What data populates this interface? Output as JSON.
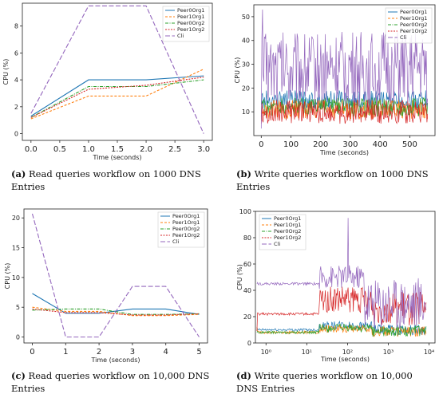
{
  "captions": [
    {
      "label": "(a)",
      "text": "Read queries workflow on 1000 DNS Entries"
    },
    {
      "label": "(b)",
      "text": "Write queries workflow on 1000 DNS Entries"
    },
    {
      "label": "(c)",
      "text": "Read queries workflow on 10,000 DNS Entries"
    },
    {
      "label": "(d)",
      "text": "Write queries workflow on 10,000 DNS Entries"
    }
  ],
  "colors": {
    "Peer0Org1": "#1f77b4",
    "Peer1Org1": "#ff7f0e",
    "Peer0Org2": "#2ca02c",
    "Peer1Org2": "#d62728",
    "Cli": "#9467bd"
  },
  "chart_data": [
    {
      "id": "a",
      "type": "line",
      "xlabel": "Time (seconds)",
      "ylabel": "CPU (%)",
      "xlim": [
        -0.15,
        3.15
      ],
      "ylim": [
        -0.5,
        9.7
      ],
      "xticks": [
        0.0,
        0.5,
        1.0,
        1.5,
        2.0,
        2.5,
        3.0
      ],
      "xtick_labels": [
        "0.0",
        "0.5",
        "1.0",
        "1.5",
        "2.0",
        "2.5",
        "3.0"
      ],
      "yticks": [
        0,
        2,
        4,
        6,
        8
      ],
      "ytick_labels": [
        "0",
        "2",
        "4",
        "6",
        "8"
      ],
      "legend": "upper-right",
      "series": [
        {
          "name": "Peer0Org1",
          "x": [
            0,
            1,
            2,
            3
          ],
          "y": [
            1.3,
            4.0,
            4.0,
            4.3
          ]
        },
        {
          "name": "Peer1Org1",
          "x": [
            0,
            1,
            2,
            3
          ],
          "y": [
            1.1,
            2.8,
            2.8,
            4.8
          ]
        },
        {
          "name": "Peer0Org2",
          "x": [
            0,
            1,
            2,
            3
          ],
          "y": [
            1.2,
            3.5,
            3.5,
            4.0
          ]
        },
        {
          "name": "Peer1Org2",
          "x": [
            0,
            1,
            2,
            3
          ],
          "y": [
            1.2,
            3.3,
            3.6,
            4.2
          ]
        },
        {
          "name": "Cli",
          "x": [
            0,
            1,
            2,
            3
          ],
          "y": [
            1.5,
            9.5,
            9.5,
            0.0
          ]
        }
      ]
    },
    {
      "id": "b",
      "type": "line",
      "xlabel": "Time (seconds)",
      "ylabel": "CPU (%)",
      "xlim": [
        -25,
        585
      ],
      "ylim": [
        0,
        55
      ],
      "xticks": [
        0,
        100,
        200,
        300,
        400,
        500
      ],
      "xtick_labels": [
        "0",
        "100",
        "200",
        "300",
        "400",
        "500"
      ],
      "yticks": [
        10,
        20,
        30,
        40,
        50
      ],
      "ytick_labels": [
        "10",
        "20",
        "30",
        "40",
        "50"
      ],
      "legend": "upper-right",
      "noisy": true,
      "x_end": 560,
      "series": [
        {
          "name": "Peer0Org1",
          "base": 15,
          "amp": 4,
          "start": 13
        },
        {
          "name": "Peer1Org1",
          "base": 11,
          "amp": 4,
          "start": 6
        },
        {
          "name": "Peer0Org2",
          "base": 12,
          "amp": 4,
          "start": 8
        },
        {
          "name": "Peer1Org2",
          "base": 10,
          "amp": 5,
          "start": 5
        },
        {
          "name": "Cli",
          "base": 28,
          "amp": 16,
          "start": 3,
          "peak": 53
        }
      ]
    },
    {
      "id": "c",
      "type": "line",
      "xlabel": "Time (seconds)",
      "ylabel": "CPU (%)",
      "xlim": [
        -0.25,
        5.25
      ],
      "ylim": [
        -1,
        21.5
      ],
      "xticks": [
        0,
        1,
        2,
        3,
        4,
        5
      ],
      "xtick_labels": [
        "0",
        "1",
        "2",
        "3",
        "4",
        "5"
      ],
      "yticks": [
        0,
        5,
        10,
        15,
        20
      ],
      "ytick_labels": [
        "0",
        "5",
        "10",
        "15",
        "20"
      ],
      "legend": "upper-right",
      "series": [
        {
          "name": "Peer0Org1",
          "x": [
            0,
            1,
            2,
            3,
            4,
            5
          ],
          "y": [
            7.3,
            4.0,
            4.0,
            4.7,
            4.7,
            3.8
          ]
        },
        {
          "name": "Peer1Org1",
          "x": [
            0,
            1,
            2,
            3,
            4,
            5
          ],
          "y": [
            5.0,
            4.3,
            4.3,
            3.6,
            3.6,
            3.8
          ]
        },
        {
          "name": "Peer0Org2",
          "x": [
            0,
            1,
            2,
            3,
            4,
            5
          ],
          "y": [
            4.5,
            4.7,
            4.7,
            3.8,
            3.8,
            3.9
          ]
        },
        {
          "name": "Peer1Org2",
          "x": [
            0,
            1,
            2,
            3,
            4,
            5
          ],
          "y": [
            4.7,
            4.1,
            4.1,
            3.7,
            3.7,
            3.9
          ]
        },
        {
          "name": "Cli",
          "x": [
            0,
            1,
            2,
            3,
            4,
            5
          ],
          "y": [
            20.7,
            0.0,
            0.0,
            8.5,
            8.5,
            0.0
          ]
        }
      ]
    },
    {
      "id": "d",
      "type": "line",
      "xscale": "log",
      "xlabel": "Time (seconds)",
      "ylabel": "CPU (%)",
      "xlim": [
        0.55,
        14000
      ],
      "ylim": [
        0,
        100
      ],
      "xticks": [
        1,
        10,
        100,
        1000,
        10000
      ],
      "xtick_labels": [
        "10⁰",
        "10¹",
        "10²",
        "10³",
        "10⁴"
      ],
      "yticks": [
        0,
        20,
        40,
        60,
        80,
        100
      ],
      "ytick_labels": [
        "0",
        "20",
        "40",
        "60",
        "80",
        "100"
      ],
      "legend": "upper-left",
      "noisy": true,
      "x_end": 8500,
      "series": [
        {
          "name": "Peer0Org1",
          "base": 10,
          "amp": 8,
          "start": 10
        },
        {
          "name": "Peer1Org1",
          "base": 8,
          "amp": 8,
          "start": 12
        },
        {
          "name": "Peer0Org2",
          "base": 8,
          "amp": 8,
          "start": 8
        },
        {
          "name": "Peer1Org2",
          "base": 22,
          "amp": 26,
          "start": 9
        },
        {
          "name": "Cli",
          "base": 45,
          "amp": 6,
          "start": 45,
          "peak": 95
        }
      ]
    }
  ]
}
